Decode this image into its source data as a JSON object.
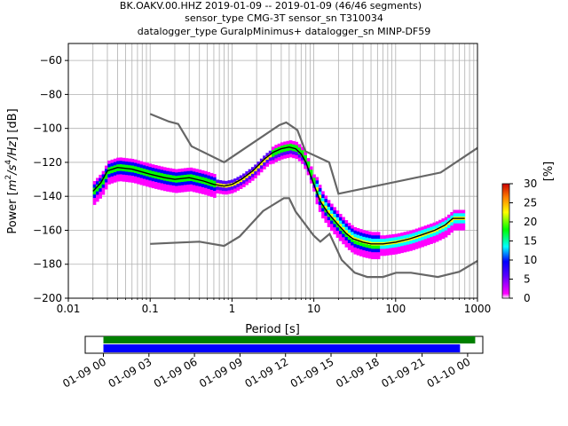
{
  "title_lines": [
    "BK.OAKV.00.HHZ   2019-01-09 -- 2019-01-09  (46/46 segments)",
    "sensor_type CMG-3T sensor_sn T310034",
    "datalogger_type GuralpMinimus+ datalogger_sn MINP-DF59"
  ],
  "colors": {
    "noise_model": "#666666",
    "mean_curve": "#000000",
    "grid": "#b0b0b0",
    "timeline_top": "#008000",
    "timeline_bottom": "#0000ff"
  },
  "chart_data": [
    {
      "type": "heatmap",
      "subtype": "probabilistic power spectral density",
      "xlabel": "Period [s]",
      "ylabel_parts": [
        "Power [",
        "m",
        "2",
        "/s",
        "4",
        "/Hz",
        "] [dB]"
      ],
      "x_scale": "log",
      "xlim": [
        0.01,
        1000
      ],
      "ylim": [
        -200,
        -50
      ],
      "x_ticks": [
        0.01,
        0.1,
        1,
        10,
        100,
        1000
      ],
      "x_tick_labels": [
        "0.01",
        "0.1",
        "1",
        "10",
        "100",
        "1000"
      ],
      "y_ticks": [
        -200,
        -180,
        -160,
        -140,
        -120,
        -100,
        -80,
        -60
      ],
      "y_tick_labels": [
        "−200",
        "−180",
        "−160",
        "−140",
        "−120",
        "−100",
        "−80",
        "−60"
      ],
      "grid": true,
      "noise_models": [
        {
          "x": [
            0.1,
            0.17,
            0.22,
            0.32,
            0.8,
            3.8,
            4.6,
            6.3,
            7.9,
            15.4,
            20,
            354.8,
            1000
          ],
          "y": [
            -91.5,
            -96,
            -97.4,
            -110.5,
            -120,
            -98,
            -96.5,
            -101,
            -113.5,
            -120,
            -138.5,
            -126,
            -111.5
          ]
        },
        {
          "x": [
            0.1,
            0.17,
            0.4,
            0.8,
            1.24,
            2.4,
            4.3,
            5,
            6,
            10,
            12,
            15.6,
            21.9,
            31.6,
            45,
            70,
            101,
            154,
            328,
            600,
            1000
          ],
          "y": [
            -168,
            -167.5,
            -166.7,
            -169.2,
            -163.7,
            -148.6,
            -141.1,
            -141.1,
            -149,
            -163.2,
            -166.7,
            -162.1,
            -177.5,
            -185,
            -187.5,
            -187.5,
            -185,
            -185,
            -187.5,
            -184.4,
            -178
          ]
        }
      ],
      "mean_curve": {
        "x": [
          0.02,
          0.025,
          0.03,
          0.04,
          0.06,
          0.1,
          0.15,
          0.2,
          0.3,
          0.45,
          0.6,
          0.8,
          1,
          1.3,
          1.8,
          2.5,
          3.2,
          4,
          5,
          6,
          7,
          8,
          9,
          10,
          12,
          15,
          20,
          25,
          30,
          40,
          50,
          70,
          100,
          150,
          200,
          300,
          400,
          500,
          700
        ],
        "y": [
          -137,
          -132,
          -125,
          -123,
          -124,
          -127,
          -129,
          -130,
          -129,
          -131,
          -133,
          -134,
          -133,
          -130,
          -125,
          -118,
          -114,
          -112,
          -111,
          -112,
          -115,
          -120,
          -127,
          -133,
          -143,
          -150,
          -157,
          -162,
          -165,
          -167,
          -168,
          -168,
          -167,
          -165,
          -163,
          -160,
          -157,
          -153,
          -153
        ]
      },
      "probability_colorbar": {
        "label": "[%]",
        "range": [
          0,
          30
        ],
        "ticks": [
          0,
          5,
          10,
          15,
          20,
          25,
          30
        ],
        "tick_labels": [
          "0",
          "5",
          "10",
          "15",
          "20",
          "25",
          "30"
        ]
      }
    },
    {
      "type": "timeline",
      "x_tick_labels": [
        "01-09 00",
        "01-09 03",
        "01-09 06",
        "01-09 09",
        "01-09 12",
        "01-09 15",
        "01-09 18",
        "01-09 21",
        "01-10 00"
      ],
      "x_tick_hours": [
        0,
        3,
        6,
        9,
        12,
        15,
        18,
        21,
        24
      ],
      "xlim_hours": [
        -1.2,
        25
      ],
      "bars": [
        {
          "start_hour": 0,
          "end_hour": 24.5
        },
        {
          "start_hour": 0,
          "end_hour": 23.5
        }
      ]
    }
  ]
}
